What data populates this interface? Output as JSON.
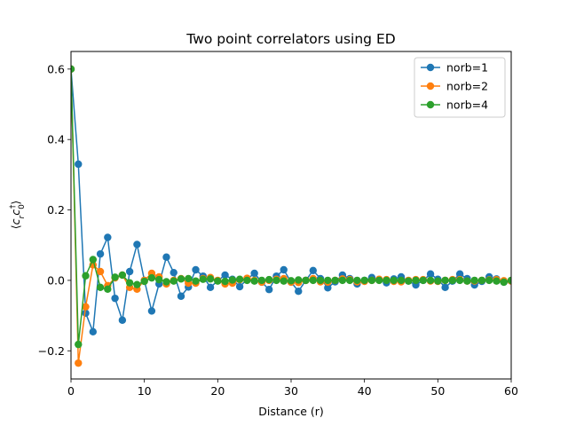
{
  "chart_data": {
    "type": "line",
    "title": "Two point correlators using ED",
    "xlabel": "Distance (r)",
    "ylabel": "⟨c_r c_0†⟩",
    "xlim": [
      0,
      60
    ],
    "ylim": [
      -0.28,
      0.65
    ],
    "xticks": [
      0,
      10,
      20,
      30,
      40,
      50,
      60
    ],
    "yticks": [
      -0.2,
      0.0,
      0.2,
      0.4,
      0.6
    ],
    "ytick_labels": [
      "−0.2",
      "0.0",
      "0.2",
      "0.4",
      "0.6"
    ],
    "grid": false,
    "legend_position": "top-right",
    "colors": {
      "norb=1": "#1f77b4",
      "norb=2": "#ff7f0e",
      "norb=4": "#2ca02c"
    },
    "series": [
      {
        "name": "norb=1",
        "x": [
          0,
          1,
          2,
          3,
          4,
          5,
          6,
          7,
          8,
          9,
          10,
          11,
          12,
          13,
          14,
          15,
          16,
          17,
          18,
          19,
          20,
          21,
          22,
          23,
          24,
          25,
          26,
          27,
          28,
          29,
          30,
          31,
          32,
          33,
          34,
          35,
          36,
          37,
          38,
          39,
          40,
          41,
          42,
          43,
          44,
          45,
          46,
          47,
          48,
          49,
          50,
          51,
          52,
          53,
          54,
          55,
          56,
          57,
          58,
          59,
          60
        ],
        "y": [
          0.6,
          0.33,
          -0.093,
          -0.146,
          0.075,
          0.122,
          -0.051,
          -0.113,
          0.025,
          0.102,
          0.0,
          -0.087,
          -0.01,
          0.066,
          0.022,
          -0.045,
          -0.019,
          0.03,
          0.012,
          -0.02,
          -0.001,
          0.015,
          0.003,
          -0.018,
          0.003,
          0.02,
          -0.005,
          -0.026,
          0.012,
          0.03,
          -0.005,
          -0.031,
          0.0,
          0.028,
          0.005,
          -0.021,
          -0.004,
          0.015,
          0.005,
          -0.01,
          0.0,
          0.008,
          0.002,
          -0.007,
          0.004,
          0.01,
          -0.002,
          -0.013,
          0.0,
          0.018,
          0.003,
          -0.02,
          -0.002,
          0.018,
          0.005,
          -0.013,
          -0.003,
          0.01,
          0.004,
          -0.005,
          -0.002
        ]
      },
      {
        "name": "norb=2",
        "x": [
          0,
          1,
          2,
          3,
          4,
          5,
          6,
          7,
          8,
          9,
          10,
          11,
          12,
          13,
          14,
          15,
          16,
          17,
          18,
          19,
          20,
          21,
          22,
          23,
          24,
          25,
          26,
          27,
          28,
          29,
          30,
          31,
          32,
          33,
          34,
          35,
          36,
          37,
          38,
          39,
          40,
          41,
          42,
          43,
          44,
          45,
          46,
          47,
          48,
          49,
          50,
          51,
          52,
          53,
          54,
          55,
          56,
          57,
          58,
          59,
          60
        ],
        "y": [
          0.6,
          -0.235,
          -0.075,
          0.044,
          0.025,
          -0.015,
          0.007,
          0.015,
          -0.02,
          -0.025,
          0.0,
          0.02,
          0.01,
          -0.01,
          0.0,
          0.005,
          -0.008,
          -0.008,
          0.005,
          0.008,
          0.0,
          -0.01,
          -0.008,
          0.002,
          0.006,
          0.0,
          -0.005,
          0.0,
          0.003,
          0.005,
          -0.005,
          -0.006,
          0.0,
          0.005,
          -0.004,
          -0.005,
          0.0,
          0.004,
          0.002,
          -0.004,
          -0.003,
          0.0,
          0.003,
          0.002,
          -0.003,
          -0.004,
          0.0,
          0.002,
          0.002,
          -0.002,
          -0.003,
          0.0,
          0.002,
          0.002,
          -0.002,
          -0.002,
          0.0,
          0.001,
          0.002,
          -0.001,
          -0.002
        ]
      },
      {
        "name": "norb=4",
        "x": [
          0,
          1,
          2,
          3,
          4,
          5,
          6,
          7,
          8,
          9,
          10,
          11,
          12,
          13,
          14,
          15,
          16,
          17,
          18,
          19,
          20,
          21,
          22,
          23,
          24,
          25,
          26,
          27,
          28,
          29,
          30,
          31,
          32,
          33,
          34,
          35,
          36,
          37,
          38,
          39,
          40,
          41,
          42,
          43,
          44,
          45,
          46,
          47,
          48,
          49,
          50,
          51,
          52,
          53,
          54,
          55,
          56,
          57,
          58,
          59,
          60
        ],
        "y": [
          0.6,
          -0.182,
          0.013,
          0.059,
          -0.02,
          -0.025,
          0.009,
          0.015,
          -0.007,
          -0.012,
          -0.003,
          0.007,
          0.002,
          -0.004,
          -0.002,
          0.004,
          0.005,
          -0.002,
          0.003,
          0.004,
          -0.002,
          -0.003,
          0.001,
          0.003,
          0.0,
          -0.002,
          0.0,
          0.002,
          0.0,
          -0.002,
          -0.001,
          0.001,
          0.0,
          0.0,
          0.0,
          0.0,
          0.0,
          0.0,
          0.0,
          0.0,
          0.0,
          0.0,
          0.0,
          0.0,
          0.0,
          0.0,
          -0.002,
          0.0,
          0.0,
          0.0,
          -0.002,
          0.0,
          0.0,
          0.0,
          -0.002,
          0.0,
          0.0,
          0.0,
          -0.002,
          -0.005,
          0.0
        ]
      }
    ]
  }
}
